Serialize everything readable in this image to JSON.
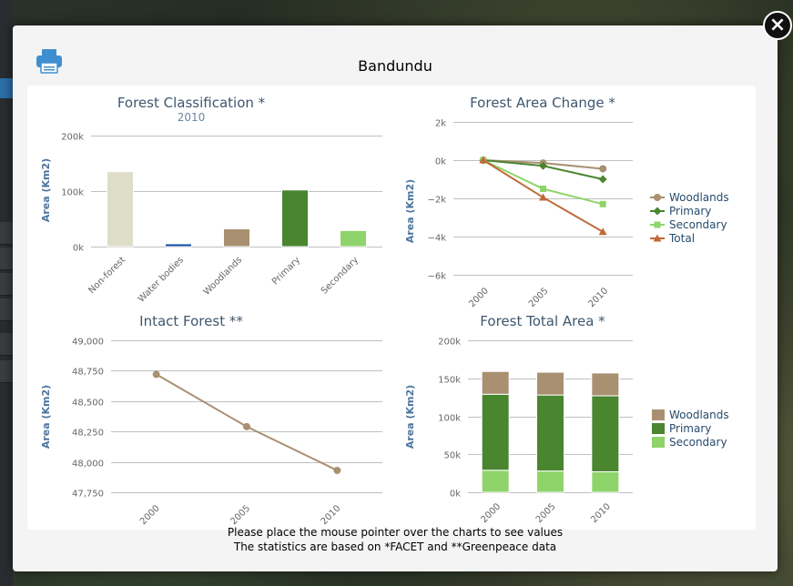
{
  "modal": {
    "title": "Bandundu",
    "note_hover": "Please place the mouse pointer over the charts to see values",
    "note_source": "The statistics are based on *FACET and **Greenpeace data"
  },
  "colors": {
    "non_forest": "#deddc8",
    "water_bodies": "#0f4da0",
    "woodlands": "#a89071",
    "primary": "#4a8530",
    "secondary": "#8fd46a",
    "total": "#c0693a",
    "intact": "#a89071"
  },
  "chart_data": [
    {
      "id": "classification",
      "type": "bar",
      "title": "Forest Classification *",
      "subtitle": "2010",
      "ylabel": "Area (Km2)",
      "ylim": [
        0,
        200000
      ],
      "yticks": [
        0,
        100000,
        200000
      ],
      "ytick_labels": [
        "0k",
        "100k",
        "200k"
      ],
      "categories": [
        "Non-forest",
        "Water bodies",
        "Woodlands",
        "Primary",
        "Secondary"
      ],
      "values": [
        135000,
        5000,
        32000,
        102000,
        29000
      ]
    },
    {
      "id": "area_change",
      "type": "line",
      "title": "Forest Area Change *",
      "ylabel": "Area (Km2)",
      "ylim": [
        -6000,
        2000
      ],
      "yticks": [
        -6000,
        -4000,
        -2000,
        0,
        2000
      ],
      "ytick_labels": [
        "−6k",
        "−4k",
        "−2k",
        "0k",
        "2k"
      ],
      "x": [
        "2000",
        "2005",
        "2010"
      ],
      "series": [
        {
          "name": "Woodlands",
          "values": [
            0,
            -150,
            -450
          ],
          "marker": "circle"
        },
        {
          "name": "Primary",
          "values": [
            0,
            -300,
            -1000
          ],
          "marker": "diamond"
        },
        {
          "name": "Secondary",
          "values": [
            0,
            -1500,
            -2300
          ],
          "marker": "square"
        },
        {
          "name": "Total",
          "values": [
            0,
            -1950,
            -3750
          ],
          "marker": "triangle"
        }
      ]
    },
    {
      "id": "intact",
      "type": "line",
      "title": "Intact Forest **",
      "ylabel": "Area (Km2)",
      "ylim": [
        47750,
        49000
      ],
      "yticks": [
        47750,
        48000,
        48250,
        48500,
        48750,
        49000
      ],
      "ytick_labels": [
        "47,750",
        "48,000",
        "48,250",
        "48,500",
        "48,750",
        "49,000"
      ],
      "x": [
        "2000",
        "2005",
        "2010"
      ],
      "series": [
        {
          "values": [
            48720,
            48290,
            47930
          ]
        }
      ]
    },
    {
      "id": "total_area",
      "type": "bar",
      "title": "Forest Total Area *",
      "ylabel": "Area (Km2)",
      "ylim": [
        0,
        200000
      ],
      "yticks": [
        0,
        50000,
        100000,
        150000,
        200000
      ],
      "ytick_labels": [
        "0k",
        "50k",
        "100k",
        "150k",
        "200k"
      ],
      "categories": [
        "2000",
        "2005",
        "2010"
      ],
      "series": [
        {
          "name": "Woodlands",
          "values": [
            30000,
            30000,
            30000
          ]
        },
        {
          "name": "Primary",
          "values": [
            100000,
            100000,
            100000
          ]
        },
        {
          "name": "Secondary",
          "values": [
            29000,
            28000,
            27000
          ]
        }
      ]
    }
  ]
}
